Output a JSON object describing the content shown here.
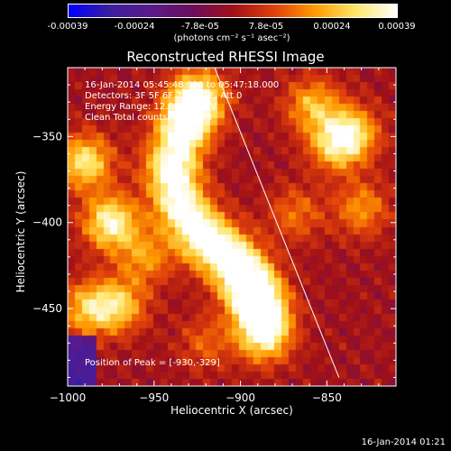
{
  "colorbar": {
    "ticks": [
      "-0.00039",
      "-0.00024",
      "-7.8e-05",
      "7.8e-05",
      "0.00024",
      "0.00039"
    ],
    "units": "(photons cm⁻² s⁻¹ asec⁻²)"
  },
  "chart_data": {
    "type": "heatmap",
    "title": "Reconstructed RHESSI Image",
    "xlabel": "Heliocentric X (arcsec)",
    "ylabel": "Heliocentric Y (arcsec)",
    "xlim": [
      -1000,
      -810
    ],
    "ylim": [
      -495,
      -310
    ],
    "zlim": [
      -0.00039,
      0.00039
    ],
    "x_ticks": [
      "−1000",
      "−950",
      "−900",
      "−850"
    ],
    "x_tick_values": [
      -1000,
      -950,
      -900,
      -850
    ],
    "y_ticks": [
      "−350",
      "−400",
      "−450"
    ],
    "y_tick_values": [
      -350,
      -400,
      -450
    ],
    "colormap": [
      "#0000ff",
      "#3c1e9e",
      "#5a1a8c",
      "#6b0d5e",
      "#a01018",
      "#e0400a",
      "#ff9a00",
      "#ffe66a",
      "#ffffff"
    ],
    "peak_position": [
      -930,
      -329
    ],
    "limb_line": [
      [
        -915,
        -310
      ],
      [
        -843,
        -490
      ]
    ],
    "emission_sources": [
      {
        "x": -925,
        "y": -328,
        "amp": 1.0
      },
      {
        "x": -933,
        "y": -345,
        "amp": 0.9
      },
      {
        "x": -940,
        "y": -368,
        "amp": 0.85
      },
      {
        "x": -935,
        "y": -390,
        "amp": 0.8
      },
      {
        "x": -922,
        "y": -408,
        "amp": 0.85
      },
      {
        "x": -906,
        "y": -420,
        "amp": 0.8
      },
      {
        "x": -895,
        "y": -435,
        "amp": 0.95
      },
      {
        "x": -888,
        "y": -450,
        "amp": 0.9
      },
      {
        "x": -886,
        "y": -466,
        "amp": 0.75
      },
      {
        "x": -990,
        "y": -365,
        "amp": 0.75
      },
      {
        "x": -975,
        "y": -400,
        "amp": 0.85
      },
      {
        "x": -988,
        "y": -450,
        "amp": 0.6
      },
      {
        "x": -970,
        "y": -448,
        "amp": 0.6
      },
      {
        "x": -858,
        "y": -332,
        "amp": 0.55
      },
      {
        "x": -845,
        "y": -355,
        "amp": 0.6
      },
      {
        "x": -835,
        "y": -348,
        "amp": 0.6
      },
      {
        "x": -830,
        "y": -392,
        "amp": 0.45
      },
      {
        "x": -868,
        "y": -395,
        "amp": 0.35
      },
      {
        "x": -955,
        "y": -420,
        "amp": 0.45
      },
      {
        "x": -920,
        "y": -470,
        "amp": 0.3
      }
    ]
  },
  "annotations": {
    "time_range": "16-Jan-2014 05:45:48.000 to 05:47:18.000",
    "detectors": "Detectors: 3F 5F 6F 7F 8F 9F, Att 0",
    "energy": "Energy Range: 12.0-25.0 keV",
    "method": "Clean     Total counts: 2.5E+03",
    "peak": "Position of Peak = [-930,-329]"
  },
  "footer": "16-Jan-2014 01:21"
}
